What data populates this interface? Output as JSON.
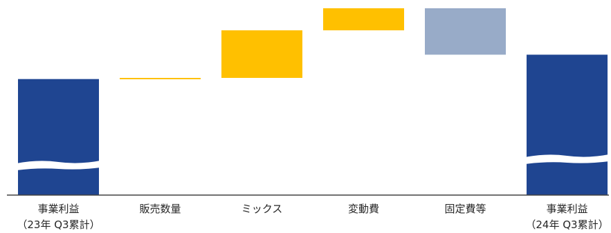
{
  "chart_data": {
    "type": "waterfall",
    "title": "",
    "xlabel": "",
    "ylabel": "",
    "axis_break_on_totals": true,
    "gridlines": false,
    "legend": "none",
    "categories": [
      [
        "事業利益",
        "（23年 Q3累計）"
      ],
      [
        "販売数量"
      ],
      [
        "ミックス"
      ],
      [
        "変動費"
      ],
      [
        "固定費等"
      ],
      [
        "事業利益",
        "（24年 Q3累計）"
      ]
    ],
    "steps": [
      {
        "kind": "total",
        "value": 100
      },
      {
        "kind": "delta",
        "value": 1
      },
      {
        "kind": "delta",
        "value": 41
      },
      {
        "kind": "delta",
        "value": 19
      },
      {
        "kind": "delta",
        "value": -40
      },
      {
        "kind": "total",
        "value": 121
      }
    ],
    "ylim": [
      0,
      161
    ],
    "colors": {
      "total": "#1f4591",
      "increase": "#ffc000",
      "decrease": "#98abc8",
      "axis": "#404040"
    }
  }
}
